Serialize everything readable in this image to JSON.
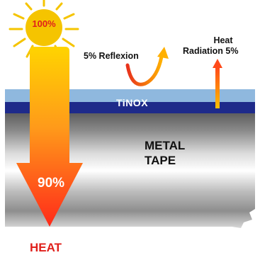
{
  "sun": {
    "label": "100%",
    "color": "#f5c400"
  },
  "reflection": {
    "label": "5% Reflexion"
  },
  "radiation": {
    "line1": "Heat",
    "line2": "Radiation 5%"
  },
  "coating": {
    "label": "TiNOX",
    "top_color": "#8fb8de",
    "bottom_color": "#1e2a8a"
  },
  "substrate": {
    "line1": "METAL",
    "line2": "TAPE"
  },
  "absorbed": {
    "label": "90%"
  },
  "output": {
    "label": "HEAT",
    "color": "#e0201b"
  }
}
